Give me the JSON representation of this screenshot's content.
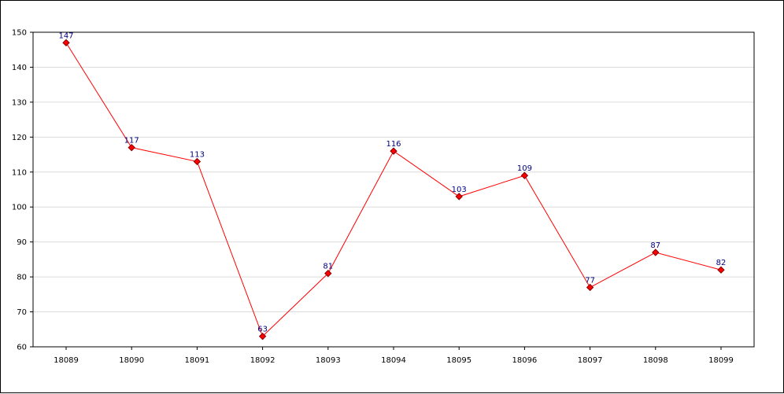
{
  "chart_data": {
    "type": "line",
    "title": "",
    "xlabel": "",
    "ylabel": "",
    "categories": [
      "18089",
      "18090",
      "18091",
      "18092",
      "18093",
      "18094",
      "18095",
      "18096",
      "18097",
      "18098",
      "18099"
    ],
    "series": [
      {
        "values": [
          147,
          117,
          113,
          63,
          81,
          116,
          103,
          109,
          77,
          87,
          82
        ]
      }
    ],
    "ylim": [
      60,
      150
    ],
    "yticks": [
      60,
      70,
      80,
      90,
      100,
      110,
      120,
      130,
      140,
      150
    ],
    "grid": true,
    "legend": "none",
    "colors": {
      "line": "#ff0000",
      "marker_fill": "#ff0000",
      "marker_stroke": "#800000",
      "data_label": "#000080",
      "gridline": "#dcdcdc",
      "axis": "#000000"
    }
  }
}
